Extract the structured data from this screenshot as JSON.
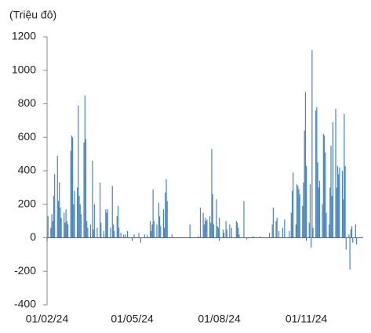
{
  "chart_data": {
    "type": "bar",
    "ylabel": "(Triệu đô)",
    "color": "#4a86c0",
    "x": [
      "02/02/24",
      "05/02/24",
      "06/02/24",
      "07/02/24",
      "08/02/24",
      "09/02/24",
      "12/02/24",
      "13/02/24",
      "14/02/24",
      "15/02/24",
      "16/02/24",
      "19/02/24",
      "20/02/24",
      "21/02/24",
      "22/02/24",
      "23/02/24",
      "26/02/24",
      "27/02/24",
      "28/02/24",
      "29/02/24",
      "01/03/24",
      "04/03/24",
      "05/03/24",
      "06/03/24",
      "07/03/24",
      "08/03/24",
      "11/03/24",
      "12/03/24",
      "13/03/24",
      "14/03/24",
      "15/03/24",
      "18/03/24",
      "20/03/24",
      "21/03/24",
      "22/03/24",
      "25/03/24",
      "28/03/24",
      "29/03/24",
      "01/04/24",
      "03/04/24",
      "04/04/24",
      "05/04/24",
      "08/04/24",
      "10/04/24",
      "11/04/24",
      "12/04/24",
      "15/04/24",
      "16/04/24",
      "17/04/24",
      "19/04/24",
      "22/04/24",
      "24/04/24",
      "26/04/24",
      "03/05/24",
      "08/05/24",
      "10/05/24",
      "14/05/24",
      "17/05/24",
      "20/05/24",
      "21/05/24",
      "22/05/24",
      "23/05/24",
      "24/05/24",
      "27/05/24",
      "29/05/24",
      "30/05/24",
      "31/05/24",
      "03/06/24",
      "04/06/24",
      "05/06/24",
      "06/06/24",
      "07/06/24",
      "12/06/24",
      "01/07/24",
      "10/07/24",
      "12/07/24",
      "15/07/24",
      "16/07/24",
      "17/07/24",
      "18/07/24",
      "19/07/24",
      "22/07/24",
      "23/07/24",
      "24/07/24",
      "25/07/24",
      "26/07/24",
      "29/07/24",
      "30/07/24",
      "31/07/24",
      "01/08/24",
      "05/08/24",
      "06/08/24",
      "08/08/24",
      "09/08/24",
      "12/08/24",
      "14/08/24",
      "19/08/24",
      "20/08/24",
      "21/08/24",
      "22/08/24",
      "27/08/24",
      "30/08/24",
      "06/09/24",
      "13/09/24",
      "23/09/24",
      "26/09/24",
      "27/09/24",
      "30/09/24",
      "01/10/24",
      "03/10/24",
      "07/10/24",
      "09/10/24",
      "14/10/24",
      "16/10/24",
      "17/10/24",
      "18/10/24",
      "21/10/24",
      "22/10/24",
      "23/10/24",
      "24/10/24",
      "25/10/24",
      "28/10/24",
      "29/10/24",
      "30/10/24",
      "31/10/24",
      "01/11/24",
      "04/11/24",
      "05/11/24",
      "06/11/24",
      "07/11/24",
      "08/11/24",
      "11/11/24",
      "12/11/24",
      "13/11/24",
      "14/11/24",
      "15/11/24",
      "18/11/24",
      "19/11/24",
      "20/11/24",
      "21/11/24",
      "22/11/24",
      "25/11/24",
      "26/11/24",
      "27/11/24",
      "28/11/24",
      "29/11/24",
      "02/12/24",
      "03/12/24",
      "04/12/24",
      "05/12/24",
      "06/12/24",
      "09/12/24",
      "10/12/24",
      "11/12/24",
      "12/12/24",
      "13/12/24",
      "16/12/24",
      "17/12/24",
      "18/12/24",
      "19/12/24",
      "20/12/24",
      "23/12/24",
      "24/12/24"
    ],
    "values": [
      130,
      60,
      140,
      100,
      250,
      380,
      490,
      220,
      330,
      180,
      120,
      150,
      90,
      170,
      100,
      80,
      520,
      610,
      600,
      200,
      280,
      300,
      790,
      250,
      200,
      140,
      570,
      850,
      590,
      100,
      60,
      80,
      460,
      50,
      200,
      60,
      330,
      90,
      40,
      170,
      150,
      170,
      60,
      310,
      80,
      40,
      130,
      190,
      60,
      30,
      20,
      20,
      40,
      20,
      30,
      -30,
      20,
      15,
      100,
      40,
      80,
      290,
      100,
      80,
      210,
      130,
      70,
      170,
      60,
      270,
      350,
      220,
      20,
      80,
      10,
      180,
      150,
      80,
      120,
      100,
      110,
      130,
      90,
      530,
      260,
      80,
      230,
      70,
      60,
      120,
      50,
      30,
      100,
      50,
      80,
      60,
      100,
      90,
      60,
      20,
      220,
      -10,
      10,
      10,
      30,
      80,
      180,
      100,
      120,
      40,
      60,
      110,
      40,
      150,
      280,
      390,
      80,
      320,
      310,
      290,
      260,
      190,
      330,
      640,
      870,
      430,
      90,
      320,
      -60,
      1120,
      60,
      760,
      780,
      450,
      300,
      340,
      200,
      620,
      610,
      510,
      150,
      80,
      300,
      550,
      250,
      690,
      770,
      300,
      430,
      380,
      420,
      400,
      230,
      740,
      430,
      -70,
      20,
      -190,
      50,
      70,
      -30,
      80,
      -40
    ],
    "xlim": [
      "01/02/24",
      "31/12/24"
    ],
    "xticks": [
      "01/02/24",
      "01/05/24",
      "01/08/24",
      "01/11/24"
    ],
    "ylim": [
      -400,
      1200
    ],
    "yticks": [
      -400,
      -200,
      0,
      200,
      400,
      600,
      800,
      1000,
      1200
    ]
  }
}
